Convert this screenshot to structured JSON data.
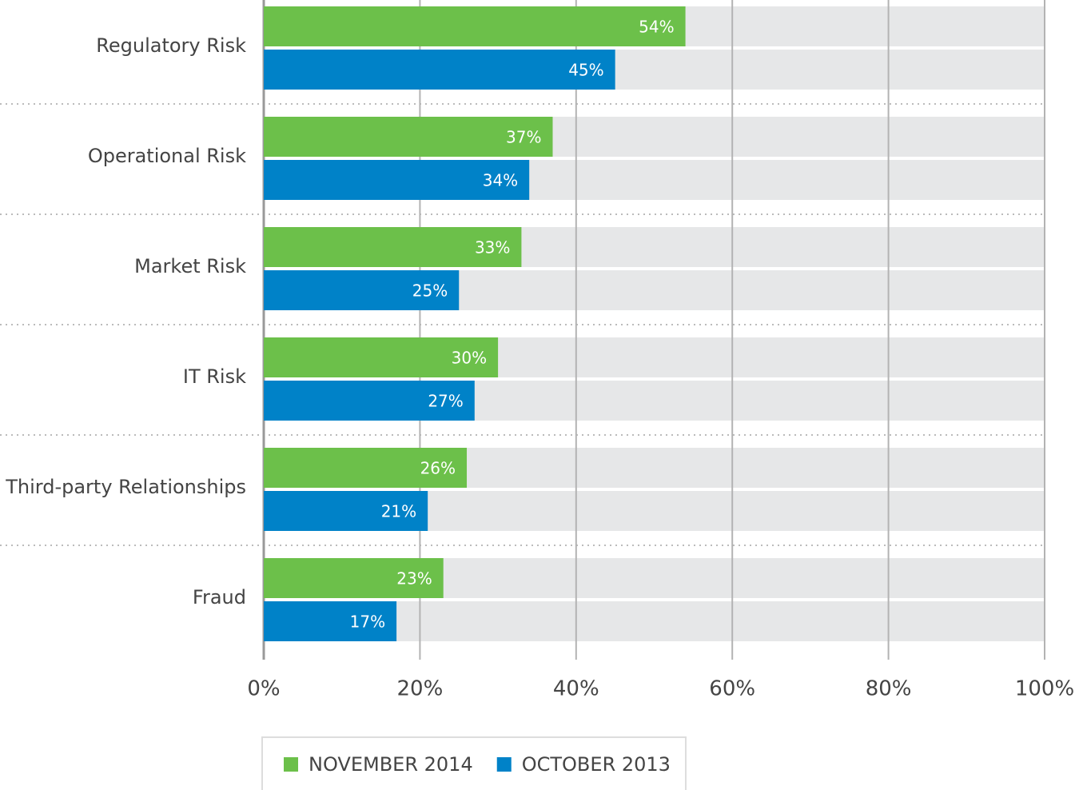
{
  "chart_data": {
    "type": "bar",
    "orientation": "horizontal",
    "categories": [
      "Regulatory Risk",
      "Operational Risk",
      "Market Risk",
      "IT Risk",
      "Third-party Relationships",
      "Fraud"
    ],
    "series": [
      {
        "name": "NOVEMBER 2014",
        "color": "#6cc04a",
        "values": [
          54,
          37,
          33,
          30,
          26,
          23
        ],
        "value_labels": [
          "54%",
          "37%",
          "33%",
          "30%",
          "26%",
          "23%"
        ]
      },
      {
        "name": "OCTOBER 2013",
        "color": "#0082c8",
        "values": [
          45,
          34,
          25,
          27,
          21,
          17
        ],
        "value_labels": [
          "45%",
          "34%",
          "25%",
          "27%",
          "21%",
          "17%"
        ]
      }
    ],
    "xlim": [
      0,
      100
    ],
    "xticks": [
      {
        "value": 0,
        "label": "0%"
      },
      {
        "value": 20,
        "label": "20%"
      },
      {
        "value": 40,
        "label": "40%"
      },
      {
        "value": 60,
        "label": "60%"
      },
      {
        "value": 80,
        "label": "80%"
      },
      {
        "value": 100,
        "label": "100%"
      }
    ],
    "grid": true,
    "legend": "bottom"
  }
}
